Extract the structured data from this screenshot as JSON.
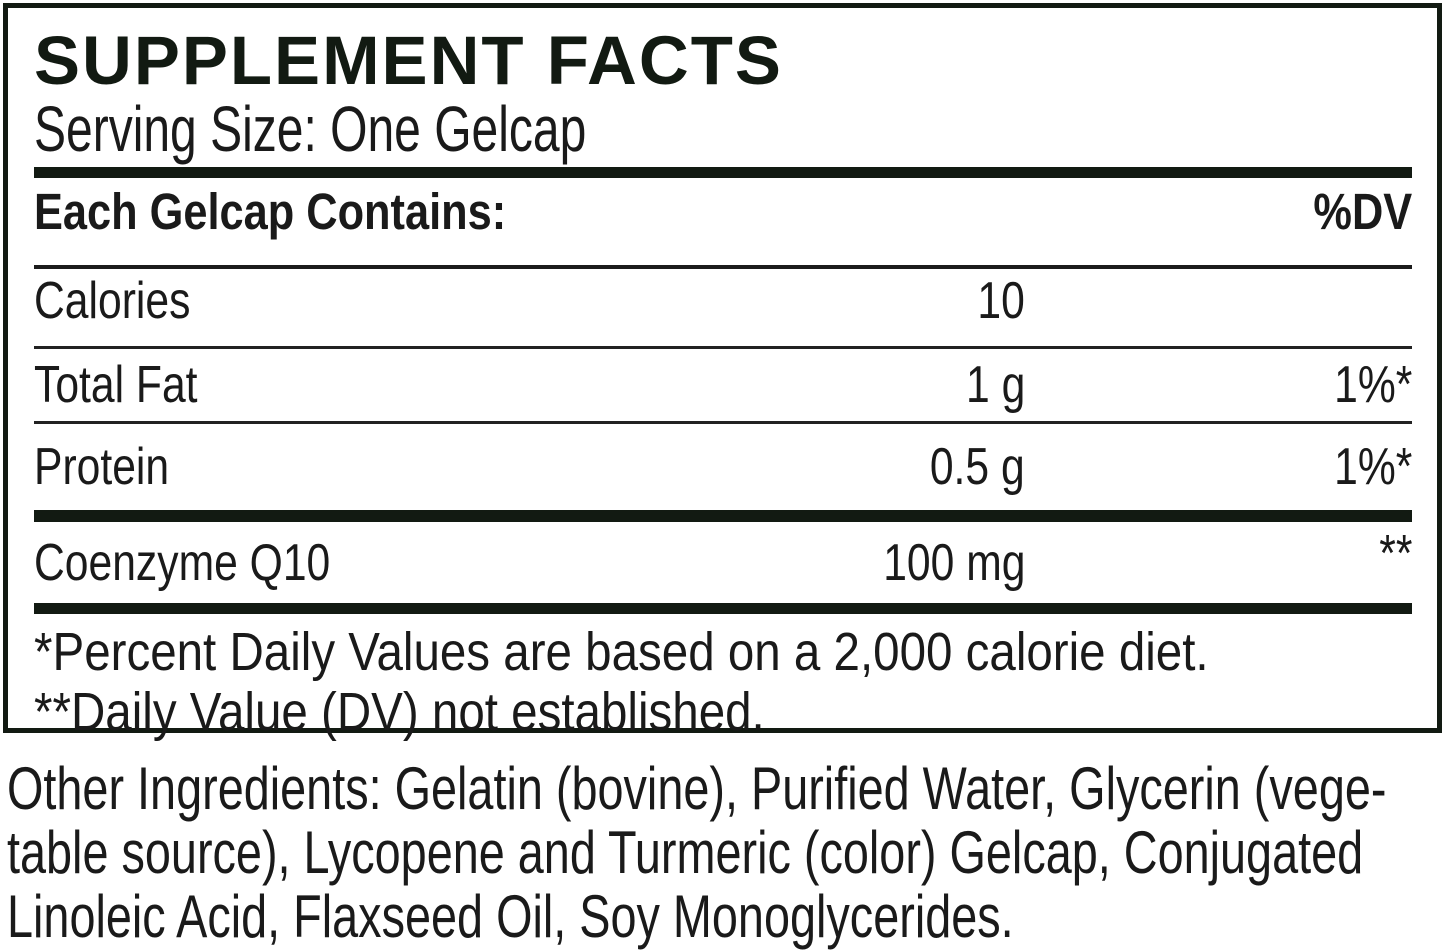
{
  "panel": {
    "title": "SUPPLEMENT FACTS",
    "serving_size": "Serving Size: One Gelcap",
    "header": {
      "left": "Each Gelcap Contains:",
      "right": "%DV"
    },
    "rows": [
      {
        "label": "Calories",
        "amount": "10",
        "dv": ""
      },
      {
        "label": "Total Fat",
        "amount": "1 g",
        "dv": "1%*"
      },
      {
        "label": "Protein",
        "amount": "0.5 g",
        "dv": "1%*"
      },
      {
        "label": "Coenzyme Q10",
        "amount": "100 mg",
        "dv": "**"
      }
    ],
    "footnotes": [
      "*Percent Daily Values are based on a 2,000 calorie diet.",
      "**Daily Value (DV) not established."
    ]
  },
  "other_ingredients": {
    "lines": [
      "Other Ingredients: Gelatin (bovine), Purified Water, Glycerin (vege-",
      "table source), Lycopene and Turmeric (color) Gelcap, Conjugated",
      "Linoleic Acid, Flaxseed Oil, Soy Monoglycerides."
    ]
  },
  "colors": {
    "ink": "#121a12",
    "text": "#1a1a1a",
    "background": "#ffffff"
  }
}
